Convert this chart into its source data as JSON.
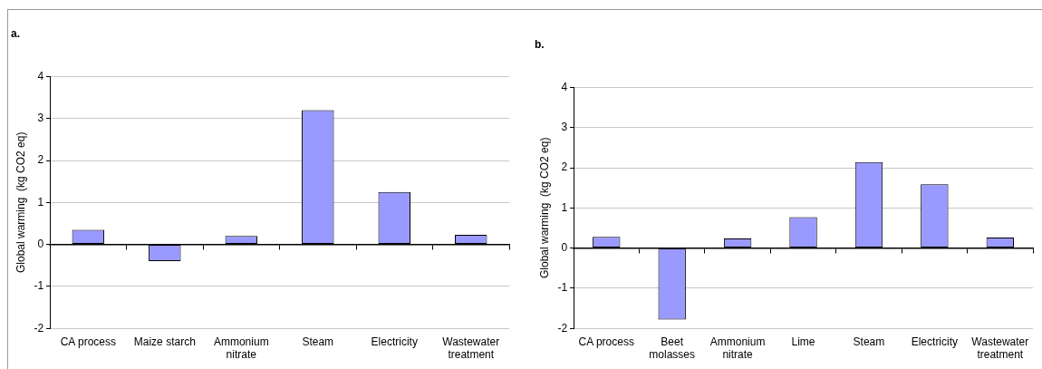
{
  "chart_data": [
    {
      "type": "bar",
      "title": "a.",
      "ylabel": "Global warming  (kg CO2 eq)",
      "categories": [
        "CA process",
        "Maize starch",
        "Ammonium nitrate",
        "Steam",
        "Electricity",
        "Wastewater treatment"
      ],
      "series": [
        {
          "color": "#9999ff",
          "values": [
            0.35,
            -0.4,
            0.2,
            3.2,
            1.25,
            0.23
          ]
        }
      ],
      "ylim": [
        -2,
        4
      ],
      "yticks": [
        -2,
        -1,
        0,
        1,
        2,
        3,
        4
      ],
      "grid": "y",
      "legend": false
    },
    {
      "type": "bar",
      "title": "b.",
      "ylabel": "Global warming  (kg CO2 eq)",
      "categories": [
        "CA process",
        "Beet molasses",
        "Ammonium nitrate",
        "Lime",
        "Steam",
        "Electricity",
        "Wastewater treatment"
      ],
      "series": [
        {
          "color": "#9999ff",
          "values": [
            0.28,
            -1.78,
            0.24,
            0.77,
            2.14,
            1.59,
            0.26
          ]
        }
      ],
      "ylim": [
        -2,
        4
      ],
      "yticks": [
        -2,
        -1,
        0,
        1,
        2,
        3,
        4
      ],
      "grid": "y",
      "legend": false
    }
  ]
}
